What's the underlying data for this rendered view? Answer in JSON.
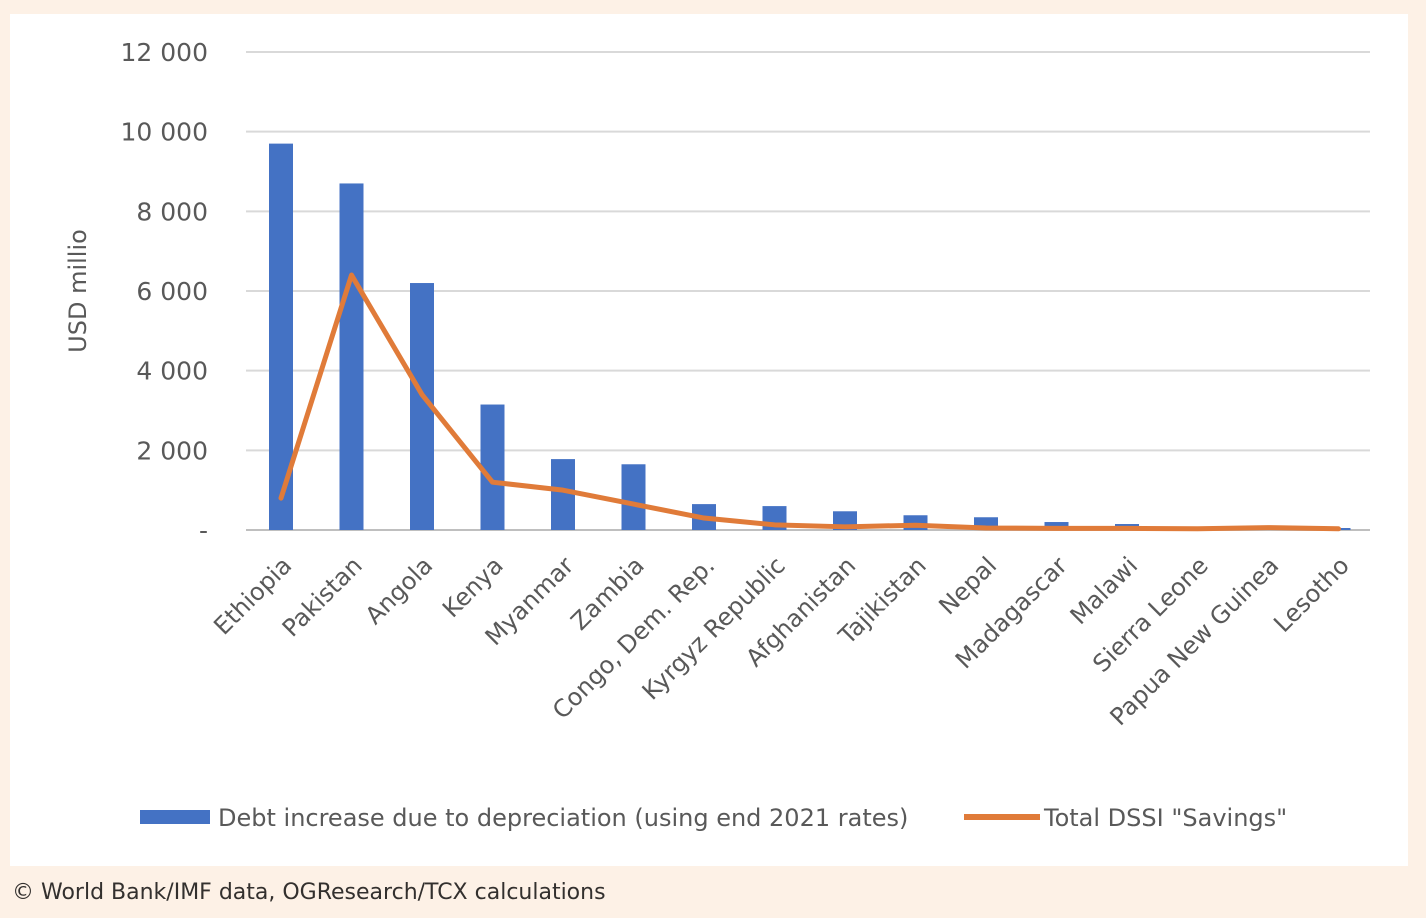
{
  "chart_data": {
    "type": "bar",
    "ylabel": "USD millio",
    "ylim": [
      0,
      12000
    ],
    "yticks": [
      {
        "value": 0,
        "label": "-"
      },
      {
        "value": 2000,
        "label": "2 000"
      },
      {
        "value": 4000,
        "label": "4 000"
      },
      {
        "value": 6000,
        "label": "6 000"
      },
      {
        "value": 8000,
        "label": "8 000"
      },
      {
        "value": 10000,
        "label": "10 000"
      },
      {
        "value": 12000,
        "label": "12 000"
      }
    ],
    "grid": true,
    "legend_position": "bottom",
    "categories": [
      "Ethiopia",
      "Pakistan",
      "Angola",
      "Kenya",
      "Myanmar",
      "Zambia",
      "Congo, Dem. Rep.",
      "Kyrgyz Republic",
      "Afghanistan",
      "Tajikistan",
      "Nepal",
      "Madagascar",
      "Malawi",
      "Sierra Leone",
      "Papua New Guinea",
      "Lesotho"
    ],
    "series": [
      {
        "name": "Debt increase due to depreciation (using end 2021 rates)",
        "type": "bar",
        "color": "#4472c4",
        "values": [
          9700,
          8700,
          6200,
          3150,
          1780,
          1650,
          650,
          600,
          470,
          370,
          320,
          200,
          150,
          30,
          30,
          50
        ]
      },
      {
        "name": "Total DSSI \"Savings\"",
        "type": "line",
        "color": "#e07b39",
        "values": [
          800,
          6400,
          3400,
          1200,
          1000,
          650,
          300,
          130,
          80,
          120,
          50,
          40,
          40,
          30,
          60,
          30
        ]
      }
    ]
  },
  "caption": "© World Bank/IMF data, OGResearch/TCX calculations"
}
